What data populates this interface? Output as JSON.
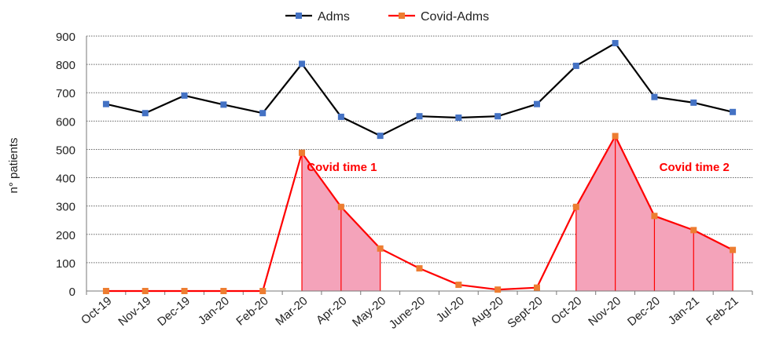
{
  "chart_data": {
    "type": "line",
    "title": "",
    "xlabel": "",
    "ylabel": "n° patients",
    "ylim": [
      0,
      900
    ],
    "yticks": [
      0,
      100,
      200,
      300,
      400,
      500,
      600,
      700,
      800,
      900
    ],
    "grid": "horizontal dotted",
    "legend_position": "top",
    "categories": [
      "Oct-19",
      "Nov-19",
      "Dec-19",
      "Jan-20",
      "Feb-20",
      "Mar-20",
      "Apr-20",
      "May-20",
      "June-20",
      "Jul-20",
      "Aug-20",
      "Sept-20",
      "Oct-20",
      "Nov-20",
      "Dec-20",
      "Jan-21",
      "Feb-21"
    ],
    "series": [
      {
        "name": "Adms",
        "line_color": "#000000",
        "marker_color": "#4472C4",
        "values": [
          660,
          628,
          690,
          658,
          628,
          802,
          615,
          548,
          617,
          612,
          617,
          660,
          795,
          875,
          685,
          665,
          632
        ]
      },
      {
        "name": "Covid-Adms",
        "line_color": "#FF0000",
        "marker_color": "#ED7D31",
        "values": [
          0,
          0,
          0,
          0,
          0,
          488,
          297,
          150,
          80,
          22,
          5,
          12,
          297,
          547,
          265,
          215,
          145
        ]
      }
    ],
    "shaded_regions": [
      {
        "series": "Covid-Adms",
        "from": "Mar-20",
        "to": "May-20",
        "fill": "#F4A3BA",
        "label": "Covid time 1",
        "label_x": "Apr-20",
        "label_y": 440
      },
      {
        "series": "Covid-Adms",
        "from": "Oct-20",
        "to": "Feb-21",
        "fill": "#F4A3BA",
        "label": "Covid time 2",
        "label_x": "Jan-21",
        "label_y": 440
      }
    ],
    "annotation_color": "#FF0000"
  }
}
